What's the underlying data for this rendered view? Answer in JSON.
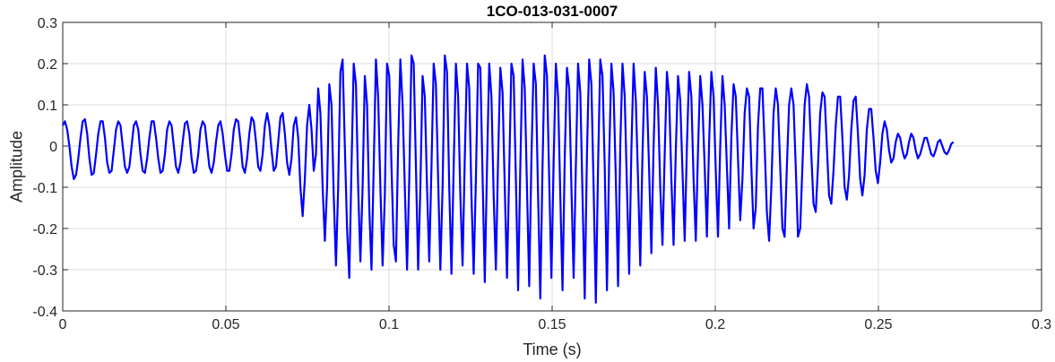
{
  "chart_data": {
    "type": "line",
    "title": "1CO-013-031-0007",
    "xlabel": "Time (s)",
    "ylabel": "Amplitude",
    "xlim": [
      0,
      0.3
    ],
    "ylim": [
      -0.4,
      0.3
    ],
    "x_ticks": [
      0,
      0.05,
      0.1,
      0.15,
      0.2,
      0.25,
      0.3
    ],
    "x_tick_labels": [
      "0",
      "0.05",
      "0.1",
      "0.15",
      "0.2",
      "0.25",
      "0.3"
    ],
    "y_ticks": [
      0.3,
      0.2,
      0.1,
      0,
      -0.1,
      -0.2,
      -0.3,
      -0.4
    ],
    "y_tick_labels": [
      "0.3",
      "0.2",
      "0.1",
      "0",
      "-0.1",
      "-0.2",
      "-0.3",
      "-0.4"
    ],
    "grid": true,
    "series": [
      {
        "color": "#0000ff",
        "x_start": 0,
        "x_end": 0.273,
        "values": [
          0.05,
          0.06,
          0.04,
          0.0,
          -0.05,
          -0.08,
          -0.07,
          -0.03,
          0.02,
          0.06,
          0.065,
          0.03,
          -0.03,
          -0.07,
          -0.065,
          -0.02,
          0.03,
          0.06,
          0.06,
          0.02,
          -0.04,
          -0.065,
          -0.06,
          -0.01,
          0.04,
          0.06,
          0.05,
          0.0,
          -0.05,
          -0.065,
          -0.05,
          0.0,
          0.05,
          0.06,
          0.04,
          -0.02,
          -0.06,
          -0.065,
          -0.03,
          0.02,
          0.06,
          0.06,
          0.02,
          -0.03,
          -0.065,
          -0.06,
          -0.02,
          0.04,
          0.06,
          0.05,
          0.0,
          -0.05,
          -0.065,
          -0.04,
          0.01,
          0.055,
          0.06,
          0.03,
          -0.03,
          -0.065,
          -0.06,
          -0.02,
          0.04,
          0.06,
          0.05,
          0.0,
          -0.05,
          -0.065,
          -0.04,
          0.01,
          0.05,
          0.06,
          0.03,
          -0.02,
          -0.06,
          -0.06,
          -0.02,
          0.04,
          0.065,
          0.06,
          0.01,
          -0.05,
          -0.065,
          -0.03,
          0.03,
          0.07,
          0.06,
          0.01,
          -0.05,
          -0.06,
          -0.02,
          0.05,
          0.08,
          0.05,
          -0.01,
          -0.06,
          -0.05,
          0.01,
          0.07,
          0.08,
          0.03,
          -0.04,
          -0.07,
          -0.03,
          0.05,
          0.07,
          0.02,
          -0.1,
          -0.17,
          -0.08,
          0.05,
          0.1,
          0.04,
          -0.06,
          -0.02,
          0.14,
          0.08,
          -0.1,
          -0.23,
          -0.1,
          0.15,
          0.1,
          -0.12,
          -0.29,
          -0.1,
          0.18,
          0.21,
          0.0,
          -0.2,
          -0.32,
          -0.05,
          0.2,
          0.15,
          -0.1,
          -0.28,
          -0.1,
          0.17,
          0.1,
          -0.15,
          -0.3,
          -0.05,
          0.21,
          0.12,
          -0.1,
          -0.29,
          -0.12,
          0.2,
          0.17,
          -0.05,
          -0.24,
          -0.28,
          0.0,
          0.21,
          0.1,
          -0.1,
          -0.3,
          -0.08,
          0.22,
          0.2,
          -0.05,
          -0.3,
          -0.1,
          0.17,
          0.12,
          -0.1,
          -0.28,
          -0.05,
          0.2,
          0.15,
          -0.08,
          -0.3,
          -0.1,
          0.22,
          0.18,
          -0.1,
          -0.31,
          -0.05,
          0.2,
          0.12,
          -0.12,
          -0.29,
          -0.03,
          0.2,
          0.14,
          -0.12,
          -0.31,
          -0.08,
          0.2,
          0.19,
          -0.07,
          -0.33,
          -0.05,
          0.2,
          0.12,
          -0.12,
          -0.3,
          -0.03,
          0.19,
          0.13,
          -0.1,
          -0.32,
          -0.06,
          0.2,
          0.17,
          -0.08,
          -0.35,
          -0.05,
          0.21,
          0.14,
          -0.1,
          -0.34,
          -0.03,
          0.2,
          0.15,
          -0.12,
          -0.37,
          -0.05,
          0.22,
          0.17,
          -0.08,
          -0.32,
          -0.04,
          0.2,
          0.12,
          -0.12,
          -0.35,
          -0.03,
          0.19,
          0.14,
          -0.1,
          -0.32,
          -0.05,
          0.2,
          0.13,
          -0.12,
          -0.37,
          -0.02,
          0.21,
          0.15,
          -0.1,
          -0.38,
          -0.05,
          0.21,
          0.17,
          -0.05,
          -0.35,
          -0.03,
          0.2,
          0.13,
          -0.08,
          -0.34,
          0.0,
          0.2,
          0.12,
          -0.1,
          -0.31,
          -0.01,
          0.2,
          0.11,
          -0.08,
          -0.29,
          -0.02,
          0.18,
          0.12,
          -0.06,
          -0.26,
          0.0,
          0.19,
          0.1,
          -0.1,
          -0.24,
          -0.02,
          0.18,
          0.12,
          -0.08,
          -0.24,
          -0.01,
          0.17,
          0.11,
          -0.06,
          -0.23,
          0.0,
          0.18,
          0.12,
          -0.08,
          -0.23,
          -0.01,
          0.17,
          0.1,
          -0.05,
          -0.22,
          0.01,
          0.18,
          0.12,
          -0.06,
          -0.22,
          0.0,
          0.17,
          0.1,
          -0.05,
          -0.2,
          0.02,
          0.15,
          0.12,
          -0.03,
          -0.18,
          -0.08,
          0.08,
          0.14,
          0.12,
          -0.05,
          -0.2,
          -0.15,
          0.05,
          0.14,
          0.14,
          0.0,
          -0.16,
          -0.23,
          -0.1,
          0.08,
          0.14,
          0.1,
          -0.05,
          -0.2,
          -0.22,
          -0.05,
          0.1,
          0.14,
          0.1,
          -0.05,
          -0.22,
          -0.2,
          -0.05,
          0.1,
          0.15,
          0.12,
          -0.02,
          -0.14,
          -0.16,
          -0.05,
          0.08,
          0.13,
          0.12,
          0.0,
          -0.12,
          -0.14,
          -0.06,
          0.05,
          0.12,
          0.12,
          0.02,
          -0.1,
          -0.13,
          -0.07,
          0.04,
          0.11,
          0.12,
          0.03,
          -0.08,
          -0.12,
          -0.07,
          0.04,
          0.09,
          0.09,
          0.02,
          -0.06,
          -0.09,
          -0.04,
          0.03,
          0.06,
          0.04,
          -0.01,
          -0.04,
          -0.03,
          0.01,
          0.03,
          0.02,
          -0.01,
          -0.03,
          -0.02,
          0.01,
          0.03,
          0.02,
          -0.01,
          -0.03,
          -0.02,
          0.0,
          0.02,
          0.02,
          0.0,
          -0.02,
          -0.025,
          -0.01,
          0.01,
          0.015,
          0.0,
          -0.015,
          -0.02,
          -0.01,
          0.005,
          0.01
        ]
      }
    ]
  }
}
